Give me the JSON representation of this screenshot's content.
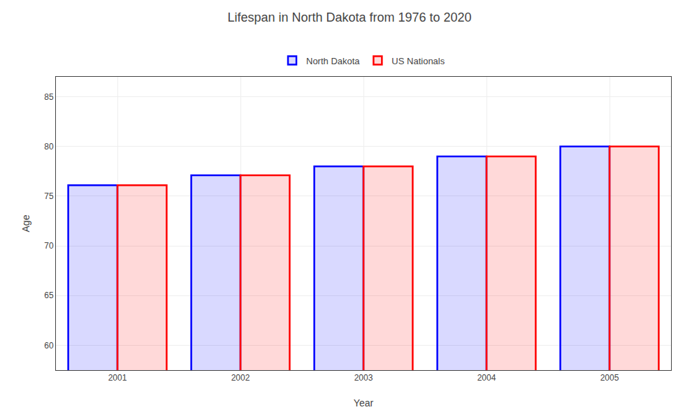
{
  "chart_data": {
    "type": "bar",
    "title": "Lifespan in North Dakota from 1976 to 2020",
    "x_label": "Year",
    "y_label": "Age",
    "categories": [
      "2001",
      "2002",
      "2003",
      "2004",
      "2005"
    ],
    "series": [
      {
        "name": "North Dakota",
        "color": "#0000ff",
        "values": [
          76.1,
          77.1,
          78.0,
          79.0,
          80.0
        ]
      },
      {
        "name": "US Nationals",
        "color": "#ff0000",
        "values": [
          76.1,
          77.1,
          78.0,
          79.0,
          80.0
        ]
      }
    ],
    "ylim": [
      57.5,
      87
    ],
    "yticks": [
      60,
      65,
      70,
      75,
      80,
      85
    ],
    "grid": true,
    "legend": "upper center"
  }
}
